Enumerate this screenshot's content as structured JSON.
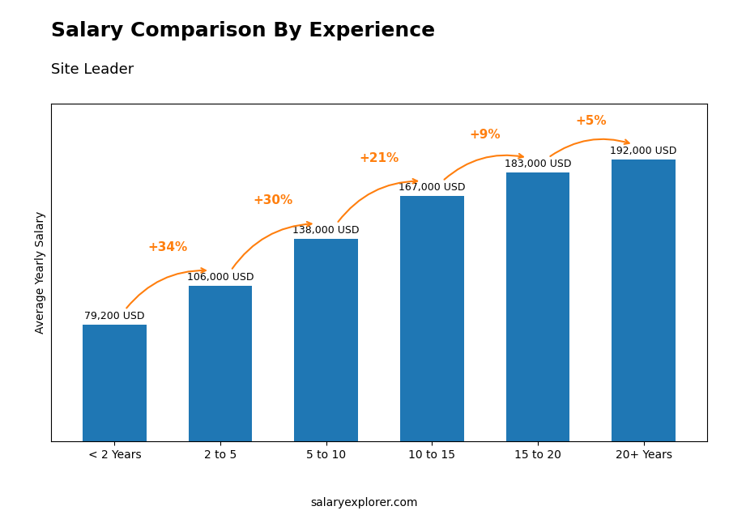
{
  "chart_data": {
    "type": "bar",
    "title": "Salary Comparison By Experience",
    "subtitle": "Site Leader",
    "categories": [
      "< 2 Years",
      "2 to 5",
      "5 to 10",
      "10 to 15",
      "15 to 20",
      "20+ Years"
    ],
    "values": [
      79200,
      106000,
      138000,
      167000,
      183000,
      192000
    ],
    "value_labels": [
      "79,200 USD",
      "106,000 USD",
      "138,000 USD",
      "167,000 USD",
      "183,000 USD",
      "192,000 USD"
    ],
    "data_labels": true,
    "ylim": [
      0,
      230000
    ],
    "ylabel": "Average Yearly Salary",
    "change_labels": [
      "+34%",
      "+30%",
      "+21%",
      "+9%",
      "+5%"
    ],
    "footer": "salaryexplorer.com",
    "tick_labels": "x"
  }
}
